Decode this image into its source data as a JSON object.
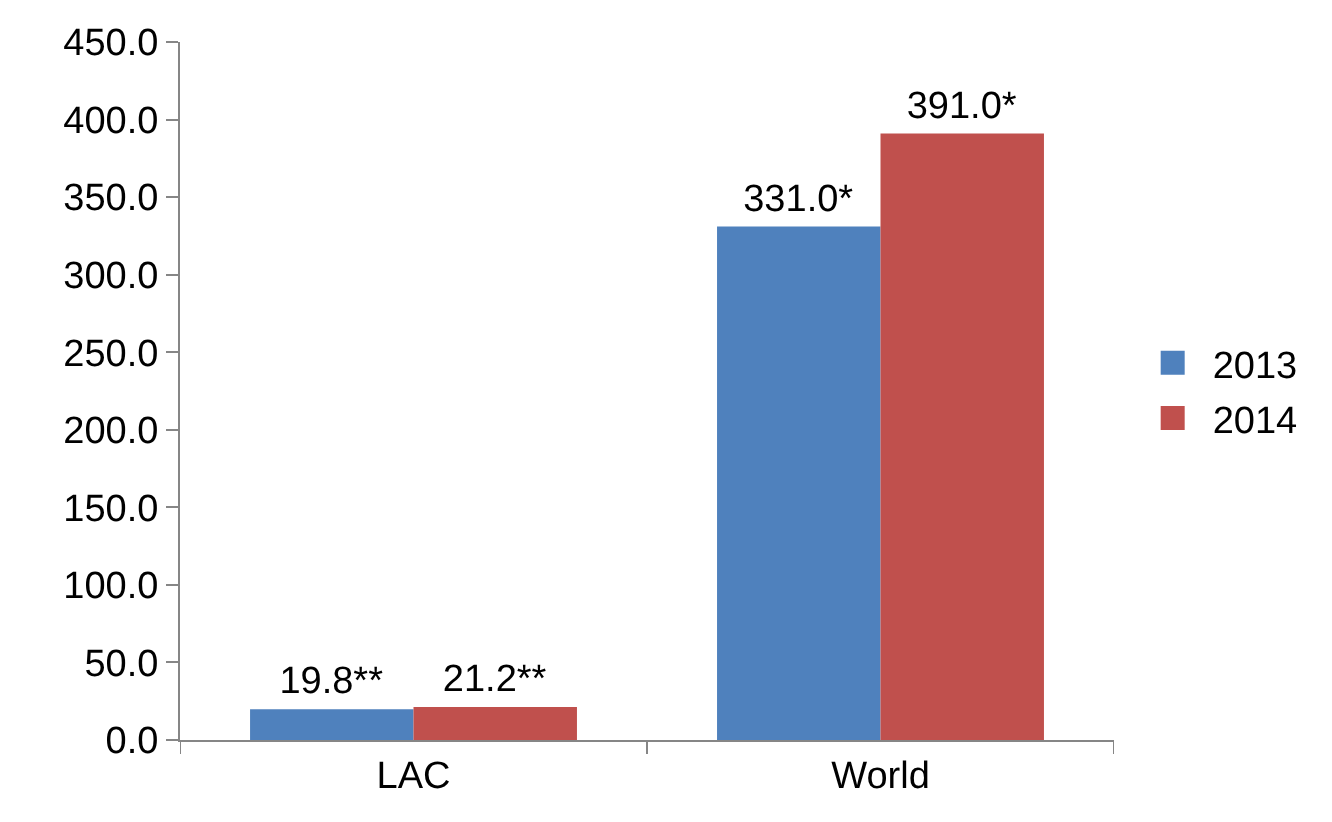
{
  "chart_data": {
    "type": "bar",
    "categories": [
      "LAC",
      "World"
    ],
    "series": [
      {
        "name": "2013",
        "color": "#4f81bd",
        "values": [
          19.8,
          331.0
        ],
        "value_labels": [
          "19.8**",
          "331.0*"
        ]
      },
      {
        "name": "2014",
        "color": "#c0504d",
        "values": [
          21.2,
          391.0
        ],
        "value_labels": [
          "21.2**",
          "391.0*"
        ]
      }
    ],
    "ylim": [
      0,
      450
    ],
    "yticks": [
      {
        "value": 0,
        "label": "0.0"
      },
      {
        "value": 50,
        "label": "50.0"
      },
      {
        "value": 100,
        "label": "100.0"
      },
      {
        "value": 150,
        "label": "150.0"
      },
      {
        "value": 200,
        "label": "200.0"
      },
      {
        "value": 250,
        "label": "250.0"
      },
      {
        "value": 300,
        "label": "300.0"
      },
      {
        "value": 350,
        "label": "350.0"
      },
      {
        "value": 400,
        "label": "400.0"
      },
      {
        "value": 450,
        "label": "450.0"
      }
    ],
    "legend": "right"
  }
}
